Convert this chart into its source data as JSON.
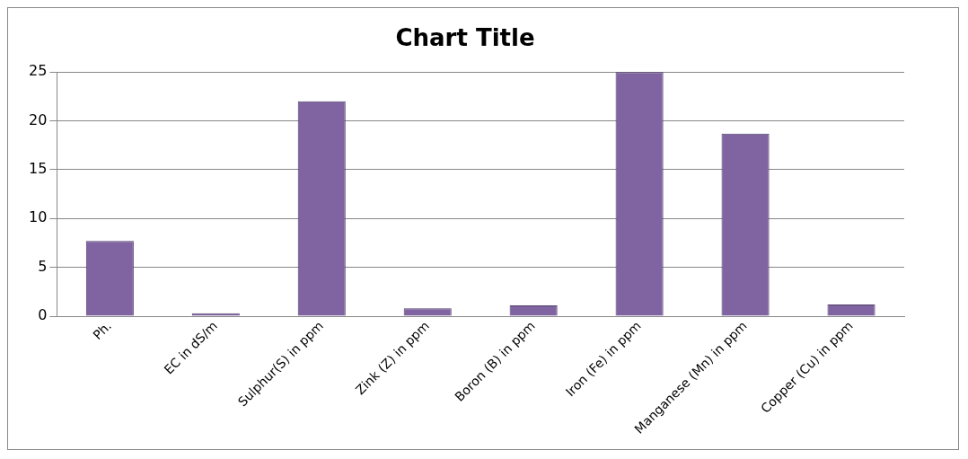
{
  "chart_data": {
    "type": "bar",
    "title": "Chart Title",
    "categories": [
      "Ph.",
      "EC in dS/m",
      "Sulphur(S) in ppm",
      "Zink (Z) in ppm",
      "Boron (B) in ppm",
      "Iron (Fe) in ppm",
      "Manganese (Mn) in ppm",
      "Copper (Cu) in ppm"
    ],
    "values": [
      7.7,
      0.3,
      22,
      0.8,
      1.1,
      25,
      18.7,
      1.2
    ],
    "color": "#8064a2",
    "ylim": [
      0,
      25
    ],
    "yticks": [
      0,
      5,
      10,
      15,
      20,
      25
    ],
    "grid": "y"
  }
}
